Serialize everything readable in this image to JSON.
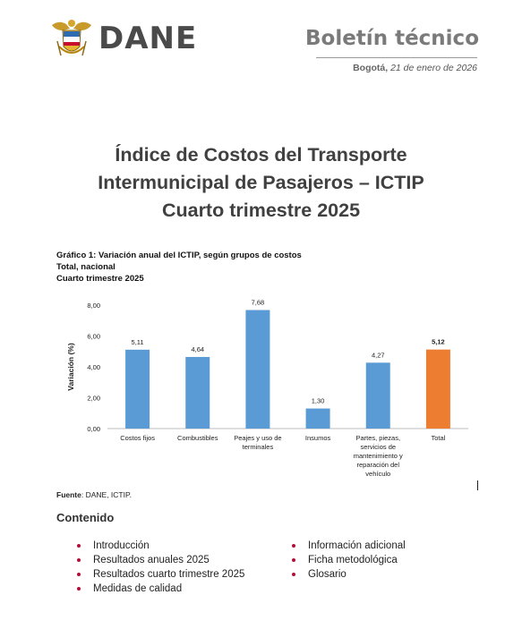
{
  "header": {
    "logo_text": "DANE",
    "doc_type": "Boletín técnico",
    "city": "Bogotá,",
    "date": "21 de enero de 2026"
  },
  "title": {
    "lines": [
      "Índice de Costos del Transporte",
      "Intermunicipal de Pasajeros – ICTIP",
      "Cuarto trimestre 2025"
    ]
  },
  "chart_caption": {
    "line1": "Gráfico 1: Variación anual del ICTIP, según grupos de costos",
    "line2": "Total, nacional",
    "line3": "Cuarto trimestre 2025"
  },
  "chart_data": {
    "type": "bar",
    "categories": [
      [
        "Costos fijos"
      ],
      [
        "Combustibles"
      ],
      [
        "Peajes y uso de",
        "terminales"
      ],
      [
        "Insumos"
      ],
      [
        "Partes, piezas,",
        "servicios de",
        "mantenimiento y",
        "reparación del",
        "vehículo"
      ],
      [
        "Total"
      ]
    ],
    "values": [
      5.11,
      4.64,
      7.68,
      1.3,
      4.27,
      5.12
    ],
    "value_labels": [
      "5,11",
      "4,64",
      "7,68",
      "1,30",
      "4,27",
      "5,12"
    ],
    "ylabel": "Variación (%)",
    "ylim": [
      0,
      8
    ],
    "yticks": [
      "0,00",
      "2,00",
      "4,00",
      "6,00",
      "8,00"
    ],
    "ytick_values": [
      0,
      2,
      4,
      6,
      8
    ],
    "grid": false,
    "colors": {
      "default": "#5b9bd5",
      "total": "#ed7d31"
    }
  },
  "source": {
    "label": "Fuente",
    "text": ": DANE, ICTIP."
  },
  "contents": {
    "title": "Contenido",
    "left": [
      "Introducción",
      "Resultados anuales 2025",
      "Resultados cuarto trimestre 2025",
      "Medidas de calidad"
    ],
    "right": [
      "Información adicional",
      "Ficha metodológica",
      "Glosario"
    ]
  }
}
